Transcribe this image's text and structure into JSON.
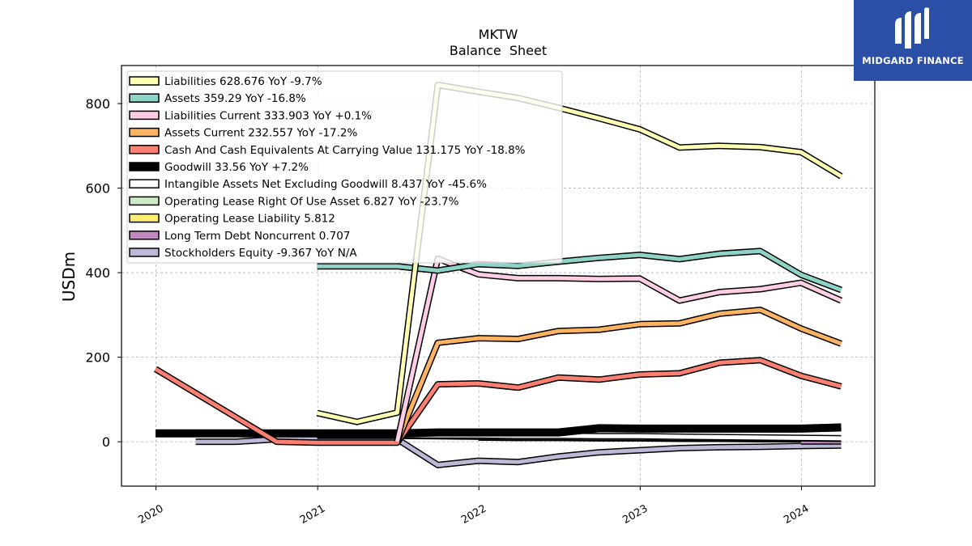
{
  "chart_data": {
    "type": "line",
    "title": "MKTW",
    "subtitle": "Balance  Sheet",
    "xlabel": "",
    "ylabel": "USDm",
    "xlim": [
      "2019-10-15",
      "2024-06-15"
    ],
    "ylim": [
      -105,
      890
    ],
    "yticks": [
      0,
      200,
      400,
      600,
      800
    ],
    "xticks": [
      "2020",
      "2021",
      "2022",
      "2023",
      "2024"
    ],
    "grid": true,
    "legend_position": "top-left",
    "series": [
      {
        "name": "Stockholders Equity",
        "legend": "Stockholders Equity  -9.367 YoY N/A",
        "color": "#bcb8d6",
        "points": [
          [
            "2020-03-31",
            0
          ],
          [
            "2020-06-30",
            0
          ],
          [
            "2020-09-30",
            6
          ],
          [
            "2020-12-31",
            6
          ],
          [
            "2021-03-31",
            6
          ],
          [
            "2021-06-30",
            6
          ],
          [
            "2021-09-30",
            -55
          ],
          [
            "2021-12-31",
            -45
          ],
          [
            "2022-03-31",
            -48
          ],
          [
            "2022-06-30",
            -35
          ],
          [
            "2022-09-30",
            -25
          ],
          [
            "2022-12-31",
            -20
          ],
          [
            "2023-03-31",
            -15
          ],
          [
            "2023-06-30",
            -13
          ],
          [
            "2023-09-30",
            -12
          ],
          [
            "2023-12-31",
            -10
          ],
          [
            "2024-03-31",
            -9
          ]
        ]
      },
      {
        "name": "Long Term Debt Noncurrent",
        "legend": "Long Term Debt Noncurrent  0.707",
        "color": "#c08ac0",
        "points": [
          [
            "2023-12-31",
            0.7
          ],
          [
            "2024-03-31",
            0.7
          ]
        ]
      },
      {
        "name": "Operating Lease Liability",
        "legend": "Operating Lease Liability  5.812",
        "color": "#ffed6f",
        "points": [
          [
            "2021-12-31",
            10
          ],
          [
            "2022-03-31",
            9
          ],
          [
            "2022-06-30",
            9
          ],
          [
            "2022-09-30",
            8
          ],
          [
            "2022-12-31",
            8
          ],
          [
            "2023-03-31",
            7
          ],
          [
            "2023-06-30",
            7
          ],
          [
            "2023-09-30",
            6
          ],
          [
            "2023-12-31",
            6
          ]
        ]
      },
      {
        "name": "Operating Lease Right Of Use Asset",
        "legend": "Operating Lease Right Of Use Asset  6.827 YoY -23.7%",
        "color": "#ccebc5",
        "points": [
          [
            "2020-12-31",
            14
          ],
          [
            "2021-03-31",
            14
          ],
          [
            "2021-06-30",
            14
          ],
          [
            "2021-09-30",
            13
          ],
          [
            "2021-12-31",
            12
          ],
          [
            "2022-03-31",
            11
          ],
          [
            "2022-06-30",
            11
          ],
          [
            "2022-09-30",
            10
          ],
          [
            "2022-12-31",
            10
          ],
          [
            "2023-03-31",
            9
          ],
          [
            "2023-06-30",
            9
          ],
          [
            "2023-09-30",
            8
          ],
          [
            "2023-12-31",
            8
          ],
          [
            "2024-03-31",
            7
          ]
        ]
      },
      {
        "name": "Intangible Assets Net Excluding Goodwill",
        "legend": "Intangible Assets Net Excluding Goodwill  8.437 YoY -45.6%",
        "color": "#ffffff",
        "points": [
          [
            "2020-12-31",
            16
          ],
          [
            "2021-03-31",
            16
          ],
          [
            "2021-06-30",
            16
          ],
          [
            "2021-09-30",
            15
          ],
          [
            "2021-12-31",
            15
          ],
          [
            "2022-03-31",
            14
          ],
          [
            "2022-06-30",
            14
          ],
          [
            "2022-09-30",
            13
          ],
          [
            "2022-12-31",
            13
          ],
          [
            "2023-03-31",
            12
          ],
          [
            "2023-06-30",
            11
          ],
          [
            "2023-09-30",
            10
          ],
          [
            "2023-12-31",
            9
          ],
          [
            "2024-03-31",
            8
          ]
        ]
      },
      {
        "name": "Goodwill",
        "legend": "Goodwill  33.56 YoY +7.2%",
        "color": "#000000",
        "points": [
          [
            "2019-12-31",
            20
          ],
          [
            "2020-03-31",
            20
          ],
          [
            "2020-06-30",
            20
          ],
          [
            "2020-09-30",
            20
          ],
          [
            "2020-12-31",
            20
          ],
          [
            "2021-03-31",
            20
          ],
          [
            "2021-06-30",
            20
          ],
          [
            "2021-09-30",
            22
          ],
          [
            "2021-12-31",
            22
          ],
          [
            "2022-03-31",
            22
          ],
          [
            "2022-06-30",
            22
          ],
          [
            "2022-09-30",
            32
          ],
          [
            "2022-12-31",
            31
          ],
          [
            "2023-03-31",
            31
          ],
          [
            "2023-06-30",
            31
          ],
          [
            "2023-09-30",
            31
          ],
          [
            "2023-12-31",
            31
          ],
          [
            "2024-03-31",
            34
          ]
        ]
      },
      {
        "name": "Cash And Cash Equivalents At Carrying Value",
        "legend": "Cash And Cash Equivalents At Carrying Value  131.175 YoY -18.8%",
        "color": "#fb8072",
        "points": [
          [
            "2019-12-31",
            172
          ],
          [
            "2020-09-30",
            0
          ],
          [
            "2020-12-31",
            -2
          ],
          [
            "2021-03-31",
            -2
          ],
          [
            "2021-06-30",
            -2
          ],
          [
            "2021-09-30",
            136
          ],
          [
            "2021-12-31",
            138
          ],
          [
            "2022-03-31",
            128
          ],
          [
            "2022-06-30",
            152
          ],
          [
            "2022-09-30",
            147
          ],
          [
            "2022-12-31",
            159
          ],
          [
            "2023-03-31",
            162
          ],
          [
            "2023-06-30",
            187
          ],
          [
            "2023-09-30",
            193
          ],
          [
            "2023-12-31",
            156
          ],
          [
            "2024-03-31",
            131
          ]
        ]
      },
      {
        "name": "Assets Current",
        "legend": "Assets Current  232.557 YoY -17.2%",
        "color": "#fdb462",
        "points": [
          [
            "2021-06-30",
            0
          ],
          [
            "2021-09-30",
            234
          ],
          [
            "2021-12-31",
            245
          ],
          [
            "2022-03-31",
            243
          ],
          [
            "2022-06-30",
            262
          ],
          [
            "2022-09-30",
            265
          ],
          [
            "2022-12-31",
            278
          ],
          [
            "2023-03-31",
            280
          ],
          [
            "2023-06-30",
            303
          ],
          [
            "2023-09-30",
            312
          ],
          [
            "2023-12-31",
            268
          ],
          [
            "2024-03-31",
            232
          ]
        ]
      },
      {
        "name": "Liabilities Current",
        "legend": "Liabilities Current  333.903 YoY +0.1%",
        "color": "#fccde5",
        "points": [
          [
            "2021-06-30",
            0
          ],
          [
            "2021-09-30",
            433
          ],
          [
            "2021-12-31",
            396
          ],
          [
            "2022-03-31",
            387
          ],
          [
            "2022-06-30",
            387
          ],
          [
            "2022-09-30",
            385
          ],
          [
            "2022-12-31",
            386
          ],
          [
            "2023-03-31",
            334
          ],
          [
            "2023-06-30",
            354
          ],
          [
            "2023-09-30",
            361
          ],
          [
            "2023-12-31",
            376
          ],
          [
            "2024-03-31",
            334
          ]
        ]
      },
      {
        "name": "Assets",
        "legend": "Assets  359.29 YoY -16.8%",
        "color": "#8dd3c7",
        "points": [
          [
            "2020-12-31",
            415
          ],
          [
            "2021-03-31",
            415
          ],
          [
            "2021-06-30",
            415
          ],
          [
            "2021-09-30",
            405
          ],
          [
            "2021-12-31",
            420
          ],
          [
            "2022-03-31",
            416
          ],
          [
            "2022-06-30",
            426
          ],
          [
            "2022-09-30",
            435
          ],
          [
            "2022-12-31",
            442
          ],
          [
            "2023-03-31",
            432
          ],
          [
            "2023-06-30",
            445
          ],
          [
            "2023-09-30",
            451
          ],
          [
            "2023-12-31",
            395
          ],
          [
            "2024-03-31",
            359
          ]
        ]
      },
      {
        "name": "Liabilities",
        "legend": "Liabilities  628.676 YoY -9.7%",
        "color": "#ffffb3",
        "points": [
          [
            "2020-12-31",
            68
          ],
          [
            "2021-03-31",
            47
          ],
          [
            "2021-06-30",
            69
          ],
          [
            "2021-09-30",
            844
          ],
          [
            "2021-12-31",
            828
          ],
          [
            "2022-03-31",
            813
          ],
          [
            "2022-06-30",
            790
          ],
          [
            "2022-09-30",
            765
          ],
          [
            "2022-12-31",
            739
          ],
          [
            "2023-03-31",
            696
          ],
          [
            "2023-06-30",
            700
          ],
          [
            "2023-09-30",
            697
          ],
          [
            "2023-12-31",
            685
          ],
          [
            "2024-03-31",
            628
          ]
        ]
      }
    ]
  },
  "logo": {
    "text": "MIDGARD FINANCE"
  }
}
